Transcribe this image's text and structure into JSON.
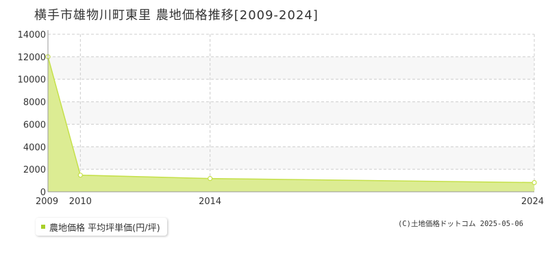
{
  "title": "横手市雄物川町東里  農地価格推移[2009-2024]",
  "legend_label": "農地価格 平均坪単価(円/坪)",
  "copyright": "(C)土地価格ドットコム 2025-05-06",
  "colors": {
    "fill": "#dcec93",
    "line": "#c5e04a",
    "marker_stroke": "#c5e04a",
    "grid": "#cccccc",
    "band": "#f7f7f7",
    "swatch": "#a8cf2a"
  },
  "chart_data": {
    "type": "area",
    "x": [
      "2009",
      "2010",
      "2014",
      "2024"
    ],
    "values": [
      12000,
      1480,
      1180,
      820
    ],
    "series": [
      {
        "name": "農地価格 平均坪単価(円/坪)",
        "values": [
          12000,
          1480,
          1180,
          820
        ]
      }
    ],
    "ylim": [
      0,
      14000
    ],
    "yticks": [
      "0",
      "2000",
      "4000",
      "6000",
      "8000",
      "10000",
      "12000",
      "14000"
    ],
    "xticks": [
      "2009",
      "2010",
      "2014",
      "2024"
    ],
    "grid": true,
    "legend_position": "bottom-left"
  }
}
